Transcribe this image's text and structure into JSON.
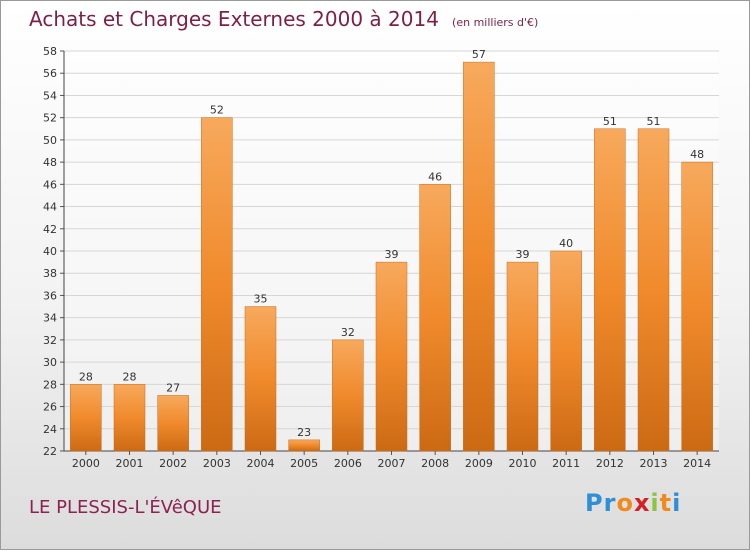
{
  "header": {
    "title": "Achats et Charges Externes 2000 à 2014",
    "subtitle": "(en milliers d'€)"
  },
  "footer": {
    "location": "LE PLESSIS-L'ÉVêQUE",
    "logo_letters": [
      "P",
      "r",
      "o",
      "x",
      "i",
      "t",
      "i"
    ],
    "logo_colors": [
      "#2e8fd6",
      "#2e8fd6",
      "#f08a1c",
      "#d42027",
      "#8cc63f",
      "#f08a1c",
      "#2e8fd6"
    ]
  },
  "colors": {
    "bar": "#f08a2c",
    "bar_light": "#f7a95c",
    "bar_dark": "#cc6a14",
    "axis_text": "#333333",
    "grid": "#d6d6d6"
  },
  "chart_data": {
    "type": "bar",
    "categories": [
      "2000",
      "2001",
      "2002",
      "2003",
      "2004",
      "2005",
      "2006",
      "2007",
      "2008",
      "2009",
      "2010",
      "2011",
      "2012",
      "2013",
      "2014"
    ],
    "values": [
      28,
      28,
      27,
      52,
      35,
      23,
      32,
      39,
      46,
      57,
      39,
      40,
      51,
      51,
      48
    ],
    "title": "Achats et Charges Externes 2000 à 2014",
    "ylim": [
      22,
      58
    ],
    "yticks": [
      22,
      24,
      26,
      28,
      30,
      32,
      34,
      36,
      38,
      40,
      42,
      44,
      46,
      48,
      50,
      52,
      54,
      56,
      58
    ],
    "grid": true,
    "data_labels": true
  }
}
